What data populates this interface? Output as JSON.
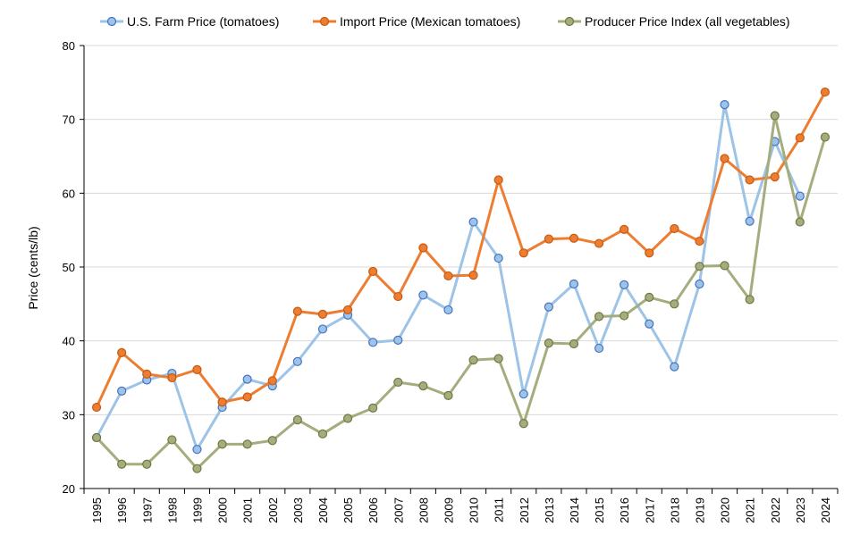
{
  "chart_data": {
    "type": "line",
    "title": "",
    "xlabel": "",
    "ylabel": "Price (cents/lb)",
    "ylim": [
      20,
      80
    ],
    "yticks": [
      20,
      30,
      40,
      50,
      60,
      70,
      80
    ],
    "grid": true,
    "legend_position": "top",
    "x": [
      "1995",
      "1996",
      "1997",
      "1998",
      "1999",
      "2000",
      "2001",
      "2002",
      "2003",
      "2004",
      "2005",
      "2006",
      "2007",
      "2008",
      "2009",
      "2010",
      "2011",
      "2012",
      "2013",
      "2014",
      "2015",
      "2016",
      "2017",
      "2018",
      "2019",
      "2020",
      "2021",
      "2022",
      "2023",
      "2024"
    ],
    "series": [
      {
        "name": "U.S. Farm Price (tomatoes)",
        "color": "#9dc3e6",
        "marker_fill": "#9dc3e6",
        "marker_stroke": "#4472c4",
        "values": [
          26.9,
          33.2,
          34.7,
          35.6,
          25.3,
          31.0,
          34.8,
          33.9,
          37.2,
          41.6,
          43.5,
          39.8,
          40.1,
          46.2,
          44.2,
          56.1,
          51.2,
          32.8,
          44.6,
          47.7,
          39.0,
          47.6,
          42.3,
          36.5,
          47.7,
          72.0,
          56.2,
          67.0,
          59.6,
          null
        ]
      },
      {
        "name": "Import Price (Mexican tomatoes)",
        "color": "#ed7d31",
        "marker_fill": "#ed7d31",
        "marker_stroke": "#c55a11",
        "values": [
          31.0,
          38.4,
          35.5,
          35.0,
          36.1,
          31.7,
          32.4,
          34.6,
          44.0,
          43.6,
          44.2,
          49.4,
          46.0,
          52.6,
          48.8,
          48.9,
          61.8,
          51.9,
          53.8,
          53.9,
          53.2,
          55.1,
          51.9,
          55.2,
          53.5,
          64.7,
          61.8,
          62.2,
          67.5,
          73.7
        ]
      },
      {
        "name": "Producer Price Index (all vegetables)",
        "color": "#a4ad7e",
        "marker_fill": "#a4ad7e",
        "marker_stroke": "#6e7a3f",
        "values": [
          26.9,
          23.3,
          23.3,
          26.6,
          22.7,
          26.0,
          26.0,
          26.5,
          29.3,
          27.4,
          29.5,
          30.9,
          34.4,
          33.9,
          32.6,
          37.4,
          37.6,
          28.8,
          39.7,
          39.6,
          43.3,
          43.4,
          45.9,
          45.0,
          50.1,
          50.2,
          45.6,
          70.5,
          56.1,
          67.6
        ]
      }
    ]
  }
}
